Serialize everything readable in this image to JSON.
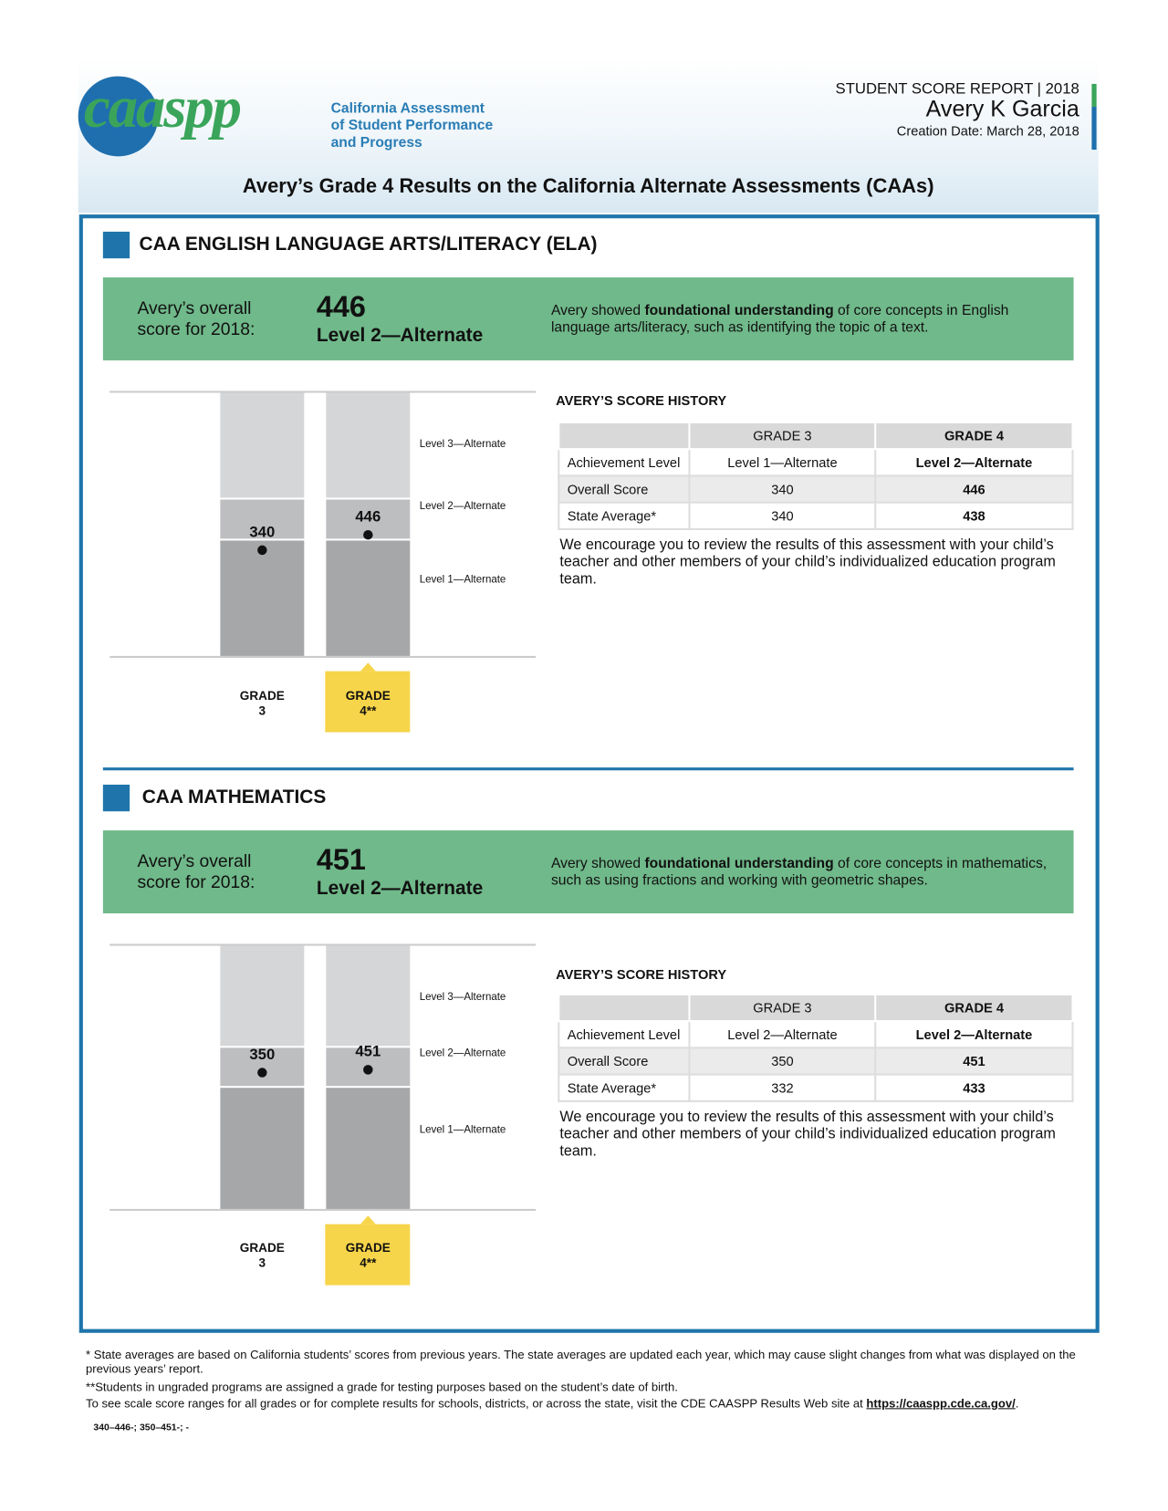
{
  "header": {
    "logo_text": "caaspp",
    "program_name": [
      "California Assessment",
      "of Student Performance",
      "and Progress"
    ],
    "report_title": "STUDENT SCORE REPORT | 2018",
    "student_name": "Avery K Garcia",
    "creation_date": "Creation Date: March 28, 2018",
    "results_title": "Avery’s Grade 4 Results on the California Alternate Assessments (CAAs)"
  },
  "sections": [
    {
      "heading": "CAA ENGLISH LANGUAGE ARTS/LITERACY (ELA)",
      "overall_label": "Avery’s overall score for 2018:",
      "score": "446",
      "level": "Level 2—Alternate",
      "description": [
        "Avery showed ",
        "foundational understanding",
        " of core concepts in English language arts/literacy, such as identifying the topic of a text."
      ],
      "chart": {
        "levels": [
          "Level 3—Alternate",
          "Level 2—Alternate",
          "Level 1—Alternate"
        ],
        "grades": [
          {
            "label": "GRADE 3",
            "score": "340"
          },
          {
            "label": "GRADE 4**",
            "score": "446"
          }
        ]
      },
      "history": {
        "title": "AVERY’S SCORE HISTORY",
        "columns": [
          "GRADE 3",
          "GRADE 4"
        ],
        "rows": [
          [
            "Achievement Level",
            "Level 1—Alternate",
            "Level 2—Alternate"
          ],
          [
            "Overall Score",
            "340",
            "446"
          ],
          [
            "State Average*",
            "340",
            "438"
          ]
        ]
      },
      "encouragement": "We encourage you to review the results of this assessment with your child’s teacher and other members of your child’s individualized education program team."
    },
    {
      "heading": "CAA MATHEMATICS",
      "overall_label": "Avery’s overall score for 2018:",
      "score": "451",
      "level": "Level 2—Alternate",
      "description": [
        "Avery showed ",
        "foundational understanding",
        " of core concepts in mathematics, such as using fractions and working with geometric shapes."
      ],
      "chart": {
        "levels": [
          "Level 3—Alternate",
          "Level 2—Alternate",
          "Level 1—Alternate"
        ],
        "grades": [
          {
            "label": "GRADE 3",
            "score": "350"
          },
          {
            "label": "GRADE 4**",
            "score": "451"
          }
        ]
      },
      "history": {
        "title": "AVERY’S SCORE HISTORY",
        "columns": [
          "GRADE 3",
          "GRADE 4"
        ],
        "rows": [
          [
            "Achievement Level",
            "Level 2—Alternate",
            "Level 2—Alternate"
          ],
          [
            "Overall Score",
            "350",
            "451"
          ],
          [
            "State Average*",
            "332",
            "433"
          ]
        ]
      },
      "encouragement": "We encourage you to review the results of this assessment with your child’s teacher and other members of your child’s individualized education program team."
    }
  ],
  "footer": {
    "notes": [
      "* State averages are based on California students’ scores from previous years. The state averages are updated each year, which may cause slight changes from what was displayed on the previous years’ report.",
      "**Students in ungraded programs are assigned a grade for testing purposes based on the student’s date of birth."
    ],
    "link_prefix": "To see scale score ranges for all grades or for complete results for schools, districts, or across the state, visit the CDE CAASPP Results Web site at ",
    "link": "https://caaspp.cde.ca.gov/",
    "link_suffix": ".",
    "code": "340–446-; 350–451-; -"
  }
}
